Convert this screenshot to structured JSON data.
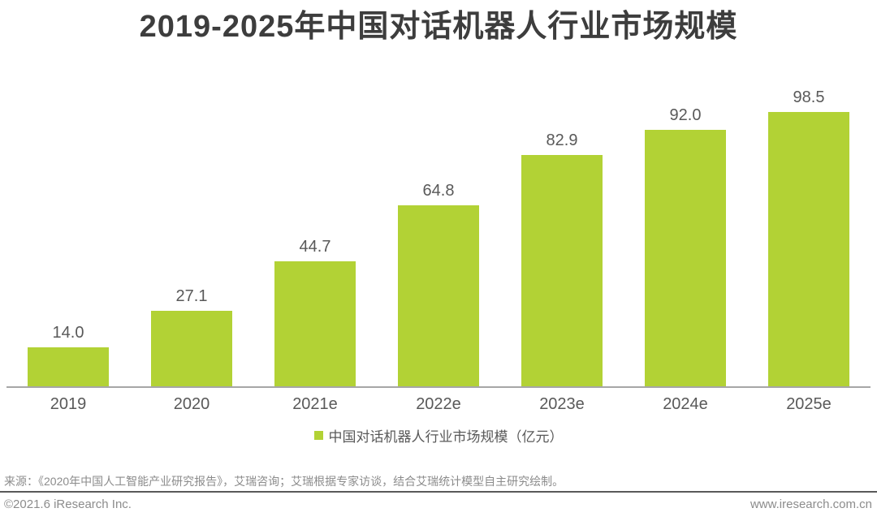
{
  "title": "2019-2025年中国对话机器人行业市场规模",
  "chart_data": {
    "type": "bar",
    "title": "2019-2025年中国对话机器人行业市场规模",
    "categories": [
      "2019",
      "2020",
      "2021e",
      "2022e",
      "2023e",
      "2024e",
      "2025e"
    ],
    "values": [
      14.0,
      27.1,
      44.7,
      64.8,
      82.9,
      92.0,
      98.5
    ],
    "value_labels": [
      "14.0",
      "27.1",
      "44.7",
      "64.8",
      "82.9",
      "92.0",
      "98.5"
    ],
    "unit": "亿元",
    "xlabel": "",
    "ylabel": "",
    "ylim": [
      0,
      100
    ],
    "grid": false,
    "legend_label": "中国对话机器人行业市场规模（亿元）",
    "legend_position": "bottom",
    "bar_color": "#b2d235"
  },
  "colors": {
    "bar": "#b2d235",
    "title_text": "#3d3d3d",
    "label_text": "#595959",
    "muted_text": "#8c8c8c",
    "axis_line": "#a6a6a6",
    "divider_line": "#595959"
  },
  "source_note": "来源：《2020年中国人工智能产业研究报告》，艾瑞咨询；艾瑞根据专家访谈，结合艾瑞统计模型自主研究绘制。",
  "footer": {
    "left": "©2021.6 iResearch Inc.",
    "right": "www.iresearch.com.cn"
  }
}
